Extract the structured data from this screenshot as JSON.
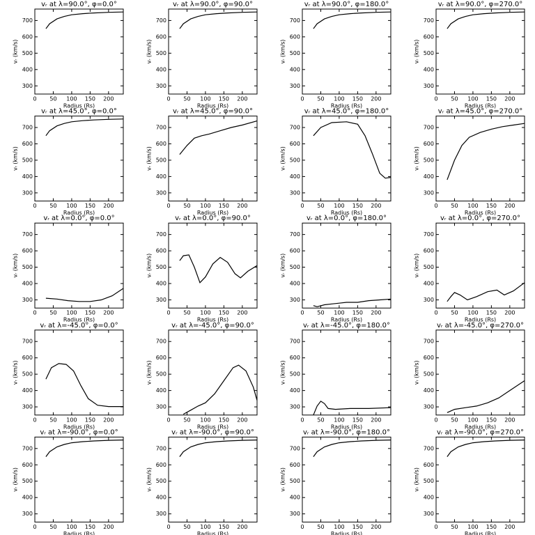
{
  "chart_data": [
    {
      "type": "line",
      "title": "vᵣ at λ=90.0°, φ=0.0°",
      "xlabel": "Radius (Rs)",
      "ylabel": "vᵣ (km/s)",
      "x": [
        30,
        40,
        60,
        80,
        100,
        130,
        160,
        200,
        240
      ],
      "values": [
        650,
        680,
        710,
        725,
        735,
        742,
        746,
        750,
        752
      ],
      "xlim": [
        0,
        240
      ],
      "ylim": [
        250,
        770
      ],
      "xticks": [
        0,
        50,
        100,
        150,
        200
      ],
      "yticks": [
        300,
        400,
        500,
        600,
        700
      ],
      "color": "#000000"
    },
    {
      "type": "line",
      "title": "vᵣ at λ=90.0°, φ=90.0°",
      "xlabel": "Radius (Rs)",
      "ylabel": "vᵣ (km/s)",
      "x": [
        30,
        40,
        60,
        80,
        100,
        130,
        160,
        200,
        240
      ],
      "values": [
        650,
        680,
        710,
        725,
        735,
        742,
        746,
        750,
        752
      ],
      "xlim": [
        0,
        240
      ],
      "ylim": [
        250,
        770
      ],
      "xticks": [
        0,
        50,
        100,
        150,
        200
      ],
      "yticks": [
        300,
        400,
        500,
        600,
        700
      ],
      "color": "#000000"
    },
    {
      "type": "line",
      "title": "vᵣ at λ=90.0°, φ=180.0°",
      "xlabel": "Radius (Rs)",
      "ylabel": "vᵣ (km/s)",
      "x": [
        30,
        40,
        60,
        80,
        100,
        130,
        160,
        200,
        240
      ],
      "values": [
        650,
        680,
        710,
        725,
        735,
        742,
        746,
        750,
        752
      ],
      "xlim": [
        0,
        240
      ],
      "ylim": [
        250,
        770
      ],
      "xticks": [
        0,
        50,
        100,
        150,
        200
      ],
      "yticks": [
        300,
        400,
        500,
        600,
        700
      ],
      "color": "#000000"
    },
    {
      "type": "line",
      "title": "vᵣ at λ=90.0°, φ=270.0°",
      "xlabel": "Radius (Rs)",
      "ylabel": "vᵣ (km/s)",
      "x": [
        30,
        40,
        60,
        80,
        100,
        130,
        160,
        200,
        240
      ],
      "values": [
        650,
        680,
        710,
        725,
        735,
        742,
        746,
        750,
        752
      ],
      "xlim": [
        0,
        240
      ],
      "ylim": [
        250,
        770
      ],
      "xticks": [
        0,
        50,
        100,
        150,
        200
      ],
      "yticks": [
        300,
        400,
        500,
        600,
        700
      ],
      "color": "#000000"
    },
    {
      "type": "line",
      "title": "vᵣ at λ=45.0°, φ=0.0°",
      "xlabel": "Radius (Rs)",
      "ylabel": "vᵣ (km/s)",
      "x": [
        30,
        40,
        60,
        80,
        100,
        130,
        160,
        200,
        240
      ],
      "values": [
        650,
        680,
        710,
        725,
        735,
        742,
        746,
        750,
        752
      ],
      "xlim": [
        0,
        240
      ],
      "ylim": [
        250,
        770
      ],
      "xticks": [
        0,
        50,
        100,
        150,
        200
      ],
      "yticks": [
        300,
        400,
        500,
        600,
        700
      ],
      "color": "#000000"
    },
    {
      "type": "line",
      "title": "vᵣ at λ=45.0°, φ=90.0°",
      "xlabel": "Radius (Rs)",
      "ylabel": "vᵣ (km/s)",
      "x": [
        30,
        50,
        70,
        90,
        110,
        140,
        170,
        200,
        240
      ],
      "values": [
        535,
        590,
        635,
        650,
        660,
        680,
        700,
        715,
        740
      ],
      "xlim": [
        0,
        240
      ],
      "ylim": [
        250,
        770
      ],
      "xticks": [
        0,
        50,
        100,
        150,
        200
      ],
      "yticks": [
        300,
        400,
        500,
        600,
        700
      ],
      "color": "#000000"
    },
    {
      "type": "line",
      "title": "vᵣ at λ=45.0°, φ=180.0°",
      "xlabel": "Radius (Rs)",
      "ylabel": "vᵣ (km/s)",
      "x": [
        30,
        50,
        80,
        120,
        150,
        170,
        190,
        210,
        225,
        240
      ],
      "values": [
        650,
        700,
        730,
        735,
        720,
        650,
        540,
        420,
        390,
        395
      ],
      "xlim": [
        0,
        240
      ],
      "ylim": [
        250,
        770
      ],
      "xticks": [
        0,
        50,
        100,
        150,
        200
      ],
      "yticks": [
        300,
        400,
        500,
        600,
        700
      ],
      "color": "#000000"
    },
    {
      "type": "line",
      "title": "vᵣ at λ=45.0°, φ=270.0°",
      "xlabel": "Radius (Rs)",
      "ylabel": "vᵣ (km/s)",
      "x": [
        30,
        50,
        70,
        90,
        120,
        150,
        180,
        210,
        240
      ],
      "values": [
        380,
        500,
        590,
        640,
        670,
        690,
        705,
        715,
        725
      ],
      "xlim": [
        0,
        240
      ],
      "ylim": [
        250,
        770
      ],
      "xticks": [
        0,
        50,
        100,
        150,
        200
      ],
      "yticks": [
        300,
        400,
        500,
        600,
        700
      ],
      "color": "#000000"
    },
    {
      "type": "line",
      "title": "vᵣ at λ=0.0°, φ=0.0°",
      "xlabel": "Radius (Rs)",
      "ylabel": "vᵣ (km/s)",
      "x": [
        30,
        60,
        90,
        120,
        150,
        180,
        210,
        240
      ],
      "values": [
        310,
        305,
        295,
        290,
        290,
        300,
        325,
        370
      ],
      "xlim": [
        0,
        240
      ],
      "ylim": [
        250,
        770
      ],
      "xticks": [
        0,
        50,
        100,
        150,
        200
      ],
      "yticks": [
        300,
        400,
        500,
        600,
        700
      ],
      "color": "#000000"
    },
    {
      "type": "line",
      "title": "vᵣ at λ=0.0°, φ=90.0°",
      "xlabel": "Radius (Rs)",
      "ylabel": "vᵣ (km/s)",
      "x": [
        30,
        40,
        55,
        70,
        85,
        100,
        120,
        140,
        160,
        180,
        195,
        215,
        240
      ],
      "values": [
        540,
        570,
        575,
        500,
        405,
        440,
        520,
        560,
        530,
        460,
        435,
        475,
        510
      ],
      "xlim": [
        0,
        240
      ],
      "ylim": [
        250,
        770
      ],
      "xticks": [
        0,
        50,
        100,
        150,
        200
      ],
      "yticks": [
        300,
        400,
        500,
        600,
        700
      ],
      "color": "#000000"
    },
    {
      "type": "line",
      "title": "vᵣ at λ=0.0°, φ=180.0°",
      "xlabel": "Radius (Rs)",
      "ylabel": "vᵣ (km/s)",
      "x": [
        30,
        40,
        60,
        80,
        100,
        120,
        150,
        180,
        210,
        240
      ],
      "values": [
        265,
        258,
        270,
        275,
        280,
        285,
        285,
        295,
        300,
        305
      ],
      "xlim": [
        0,
        240
      ],
      "ylim": [
        250,
        770
      ],
      "xticks": [
        0,
        50,
        100,
        150,
        200
      ],
      "yticks": [
        300,
        400,
        500,
        600,
        700
      ],
      "color": "#000000"
    },
    {
      "type": "line",
      "title": "vᵣ at λ=0.0°, φ=270.0°",
      "xlabel": "Radius (Rs)",
      "ylabel": "vᵣ (km/s)",
      "x": [
        30,
        40,
        50,
        65,
        85,
        110,
        140,
        165,
        185,
        210,
        240
      ],
      "values": [
        290,
        320,
        345,
        330,
        300,
        320,
        350,
        360,
        330,
        355,
        405
      ],
      "xlim": [
        0,
        240
      ],
      "ylim": [
        250,
        770
      ],
      "xticks": [
        0,
        50,
        100,
        150,
        200
      ],
      "yticks": [
        300,
        400,
        500,
        600,
        700
      ],
      "color": "#000000"
    },
    {
      "type": "line",
      "title": "vᵣ at λ=-45.0°, φ=0.0°",
      "xlabel": "Radius (Rs)",
      "ylabel": "vᵣ (km/s)",
      "x": [
        30,
        45,
        65,
        85,
        105,
        125,
        145,
        170,
        200,
        240
      ],
      "values": [
        470,
        540,
        565,
        560,
        520,
        430,
        350,
        310,
        302,
        302
      ],
      "xlim": [
        0,
        240
      ],
      "ylim": [
        250,
        770
      ],
      "xticks": [
        0,
        50,
        100,
        150,
        200
      ],
      "yticks": [
        300,
        400,
        500,
        600,
        700
      ],
      "color": "#000000"
    },
    {
      "type": "line",
      "title": "vᵣ at λ=-45.0°, φ=90.0°",
      "xlabel": "Radius (Rs)",
      "ylabel": "vᵣ (km/s)",
      "x": [
        40,
        60,
        80,
        100,
        125,
        150,
        175,
        190,
        210,
        230,
        240
      ],
      "values": [
        255,
        280,
        305,
        325,
        380,
        460,
        540,
        555,
        520,
        420,
        340
      ],
      "xlim": [
        0,
        240
      ],
      "ylim": [
        250,
        770
      ],
      "xticks": [
        0,
        50,
        100,
        150,
        200
      ],
      "yticks": [
        300,
        400,
        500,
        600,
        700
      ],
      "color": "#000000"
    },
    {
      "type": "line",
      "title": "vᵣ at λ=-45.0°, φ=180.0°",
      "xlabel": "Radius (Rs)",
      "ylabel": "vᵣ (km/s)",
      "x": [
        30,
        40,
        50,
        60,
        70,
        90,
        130,
        180,
        240
      ],
      "values": [
        250,
        305,
        335,
        320,
        290,
        285,
        290,
        290,
        295
      ],
      "xlim": [
        0,
        240
      ],
      "ylim": [
        250,
        770
      ],
      "xticks": [
        0,
        50,
        100,
        150,
        200
      ],
      "yticks": [
        300,
        400,
        500,
        600,
        700
      ],
      "color": "#000000"
    },
    {
      "type": "line",
      "title": "vᵣ at λ=-45.0°, φ=270.0°",
      "xlabel": "Radius (Rs)",
      "ylabel": "vᵣ (km/s)",
      "x": [
        30,
        50,
        80,
        110,
        140,
        170,
        200,
        240
      ],
      "values": [
        265,
        285,
        295,
        305,
        325,
        355,
        400,
        460
      ],
      "xlim": [
        0,
        240
      ],
      "ylim": [
        250,
        770
      ],
      "xticks": [
        0,
        50,
        100,
        150,
        200
      ],
      "yticks": [
        300,
        400,
        500,
        600,
        700
      ],
      "color": "#000000"
    },
    {
      "type": "line",
      "title": "vᵣ at λ=-90.0°, φ=0.0°",
      "xlabel": "Radius (Rs)",
      "ylabel": "vᵣ (km/s)",
      "x": [
        30,
        40,
        60,
        80,
        100,
        130,
        160,
        200,
        240
      ],
      "values": [
        650,
        680,
        710,
        725,
        735,
        742,
        746,
        750,
        752
      ],
      "xlim": [
        0,
        240
      ],
      "ylim": [
        250,
        770
      ],
      "xticks": [
        0,
        50,
        100,
        150,
        200
      ],
      "yticks": [
        300,
        400,
        500,
        600,
        700
      ],
      "color": "#000000"
    },
    {
      "type": "line",
      "title": "vᵣ at λ=-90.0°, φ=90.0°",
      "xlabel": "Radius (Rs)",
      "ylabel": "vᵣ (km/s)",
      "x": [
        30,
        40,
        60,
        80,
        100,
        130,
        160,
        200,
        240
      ],
      "values": [
        650,
        680,
        710,
        725,
        735,
        742,
        746,
        750,
        752
      ],
      "xlim": [
        0,
        240
      ],
      "ylim": [
        250,
        770
      ],
      "xticks": [
        0,
        50,
        100,
        150,
        200
      ],
      "yticks": [
        300,
        400,
        500,
        600,
        700
      ],
      "color": "#000000"
    },
    {
      "type": "line",
      "title": "vᵣ at λ=-90.0°, φ=180.0°",
      "xlabel": "Radius (Rs)",
      "ylabel": "vᵣ (km/s)",
      "x": [
        30,
        40,
        60,
        80,
        100,
        130,
        160,
        200,
        240
      ],
      "values": [
        650,
        680,
        710,
        725,
        735,
        742,
        746,
        750,
        752
      ],
      "xlim": [
        0,
        240
      ],
      "ylim": [
        250,
        770
      ],
      "xticks": [
        0,
        50,
        100,
        150,
        200
      ],
      "yticks": [
        300,
        400,
        500,
        600,
        700
      ],
      "color": "#000000"
    },
    {
      "type": "line",
      "title": "vᵣ at λ=-90.0°, φ=270.0°",
      "xlabel": "Radius (Rs)",
      "ylabel": "vᵣ (km/s)",
      "x": [
        30,
        40,
        60,
        80,
        100,
        130,
        160,
        200,
        240
      ],
      "values": [
        650,
        680,
        710,
        725,
        735,
        742,
        746,
        750,
        752
      ],
      "xlim": [
        0,
        240
      ],
      "ylim": [
        250,
        770
      ],
      "xticks": [
        0,
        50,
        100,
        150,
        200
      ],
      "yticks": [
        300,
        400,
        500,
        600,
        700
      ],
      "color": "#000000"
    }
  ]
}
